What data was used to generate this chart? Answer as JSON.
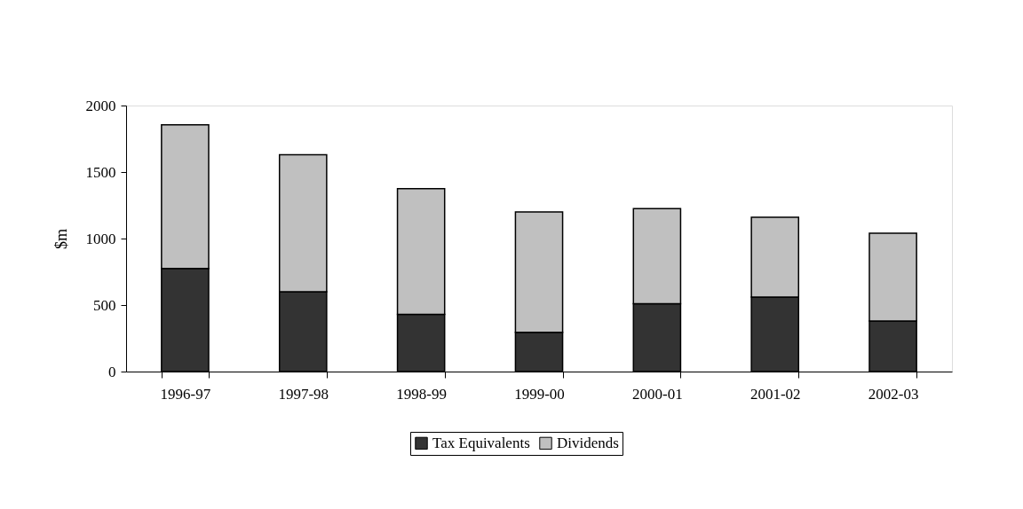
{
  "chart_data": {
    "type": "bar",
    "ylabel": "$m",
    "stacked": true,
    "categories": [
      "1996-97",
      "1997-98",
      "1998-99",
      "1999-00",
      "2000-01",
      "2001-02",
      "2002-03"
    ],
    "series": [
      {
        "name": "Tax Equivalents",
        "color": "#333333",
        "values": [
          775,
          600,
          430,
          295,
          510,
          560,
          380
        ]
      },
      {
        "name": "Dividends",
        "color": "#c0c0c0",
        "values": [
          1080,
          1030,
          945,
          905,
          715,
          600,
          660
        ]
      }
    ],
    "ylim": [
      0,
      2000
    ],
    "yticks": [
      0,
      500,
      1000,
      1500,
      2000
    ],
    "grid": false,
    "legend": "bottom"
  }
}
